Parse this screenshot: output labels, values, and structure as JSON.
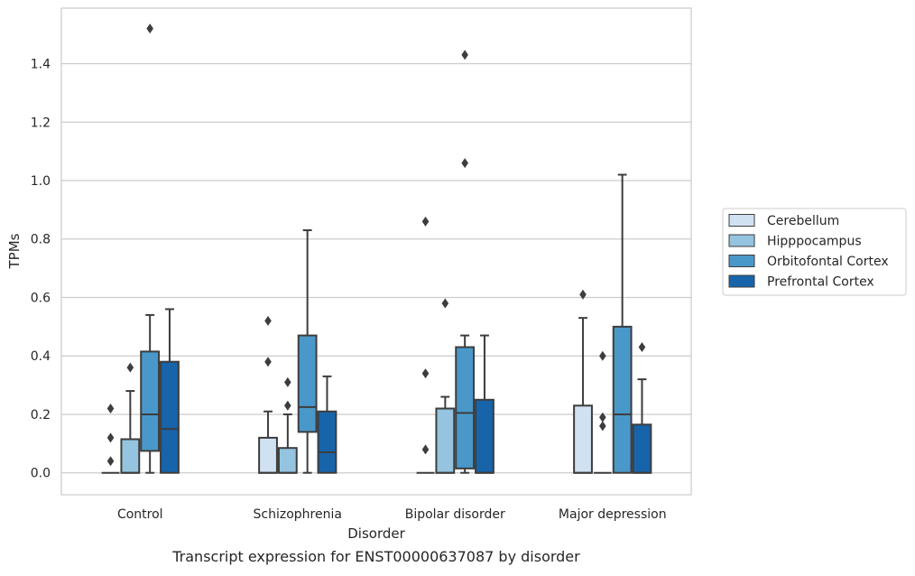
{
  "chart_data": {
    "type": "box",
    "xlabel": "Disorder",
    "ylabel": "TPMs",
    "caption": "Transcript expression for ENST00000637087 by disorder",
    "ylim": [
      -0.075,
      1.59
    ],
    "yticks": [
      "0.0",
      "0.2",
      "0.4",
      "0.6",
      "0.8",
      "1.0",
      "1.2",
      "1.4"
    ],
    "ytick_values": [
      0.0,
      0.2,
      0.4,
      0.6,
      0.8,
      1.0,
      1.2,
      1.4
    ],
    "grid": "horizontal",
    "legend_position": "right",
    "categories": [
      "Control",
      "Schizophrenia",
      "Bipolar disorder",
      "Major depression"
    ],
    "series": [
      {
        "name": "Cerebellum",
        "color": "#d0e1f2",
        "boxes": [
          {
            "q1": 0.0,
            "median": 0.0,
            "q3": 0.0,
            "whisker_low": 0.0,
            "whisker_high": 0.0,
            "outliers": [
              0.04,
              0.12,
              0.22
            ]
          },
          {
            "q1": 0.0,
            "median": 0.0,
            "q3": 0.12,
            "whisker_low": 0.0,
            "whisker_high": 0.21,
            "outliers": [
              0.38,
              0.52
            ]
          },
          {
            "q1": 0.0,
            "median": 0.0,
            "q3": 0.0,
            "whisker_low": 0.0,
            "whisker_high": 0.0,
            "outliers": [
              0.08,
              0.34,
              0.86
            ]
          },
          {
            "q1": 0.0,
            "median": 0.0,
            "q3": 0.23,
            "whisker_low": 0.0,
            "whisker_high": 0.53,
            "outliers": [
              0.61
            ]
          }
        ]
      },
      {
        "name": "Hipppocampus",
        "color": "#94c4df",
        "boxes": [
          {
            "q1": 0.0,
            "median": 0.0,
            "q3": 0.115,
            "whisker_low": 0.0,
            "whisker_high": 0.28,
            "outliers": [
              0.36
            ]
          },
          {
            "q1": 0.0,
            "median": 0.0,
            "q3": 0.085,
            "whisker_low": 0.0,
            "whisker_high": 0.2,
            "outliers": [
              0.23,
              0.31
            ]
          },
          {
            "q1": 0.0,
            "median": 0.0,
            "q3": 0.22,
            "whisker_low": 0.0,
            "whisker_high": 0.26,
            "outliers": [
              0.58
            ]
          },
          {
            "q1": 0.0,
            "median": 0.0,
            "q3": 0.0,
            "whisker_low": 0.0,
            "whisker_high": 0.0,
            "outliers": [
              0.16,
              0.19,
              0.4
            ]
          }
        ]
      },
      {
        "name": "Orbitofontal Cortex",
        "color": "#4a98c9",
        "boxes": [
          {
            "q1": 0.075,
            "median": 0.2,
            "q3": 0.415,
            "whisker_low": 0.0,
            "whisker_high": 0.54,
            "outliers": [
              1.52
            ]
          },
          {
            "q1": 0.14,
            "median": 0.225,
            "q3": 0.47,
            "whisker_low": 0.0,
            "whisker_high": 0.83,
            "outliers": []
          },
          {
            "q1": 0.015,
            "median": 0.205,
            "q3": 0.43,
            "whisker_low": 0.0,
            "whisker_high": 0.47,
            "outliers": [
              1.06,
              1.43
            ]
          },
          {
            "q1": 0.0,
            "median": 0.2,
            "q3": 0.5,
            "whisker_low": 0.0,
            "whisker_high": 1.02,
            "outliers": []
          }
        ]
      },
      {
        "name": "Prefrontal Cortex",
        "color": "#1764ab",
        "boxes": [
          {
            "q1": 0.0,
            "median": 0.15,
            "q3": 0.38,
            "whisker_low": 0.0,
            "whisker_high": 0.56,
            "outliers": []
          },
          {
            "q1": 0.0,
            "median": 0.07,
            "q3": 0.21,
            "whisker_low": 0.0,
            "whisker_high": 0.33,
            "outliers": []
          },
          {
            "q1": 0.0,
            "median": 0.0,
            "q3": 0.25,
            "whisker_low": 0.0,
            "whisker_high": 0.47,
            "outliers": []
          },
          {
            "q1": 0.0,
            "median": 0.0,
            "q3": 0.165,
            "whisker_low": 0.0,
            "whisker_high": 0.32,
            "outliers": [
              0.43
            ]
          }
        ]
      }
    ]
  }
}
